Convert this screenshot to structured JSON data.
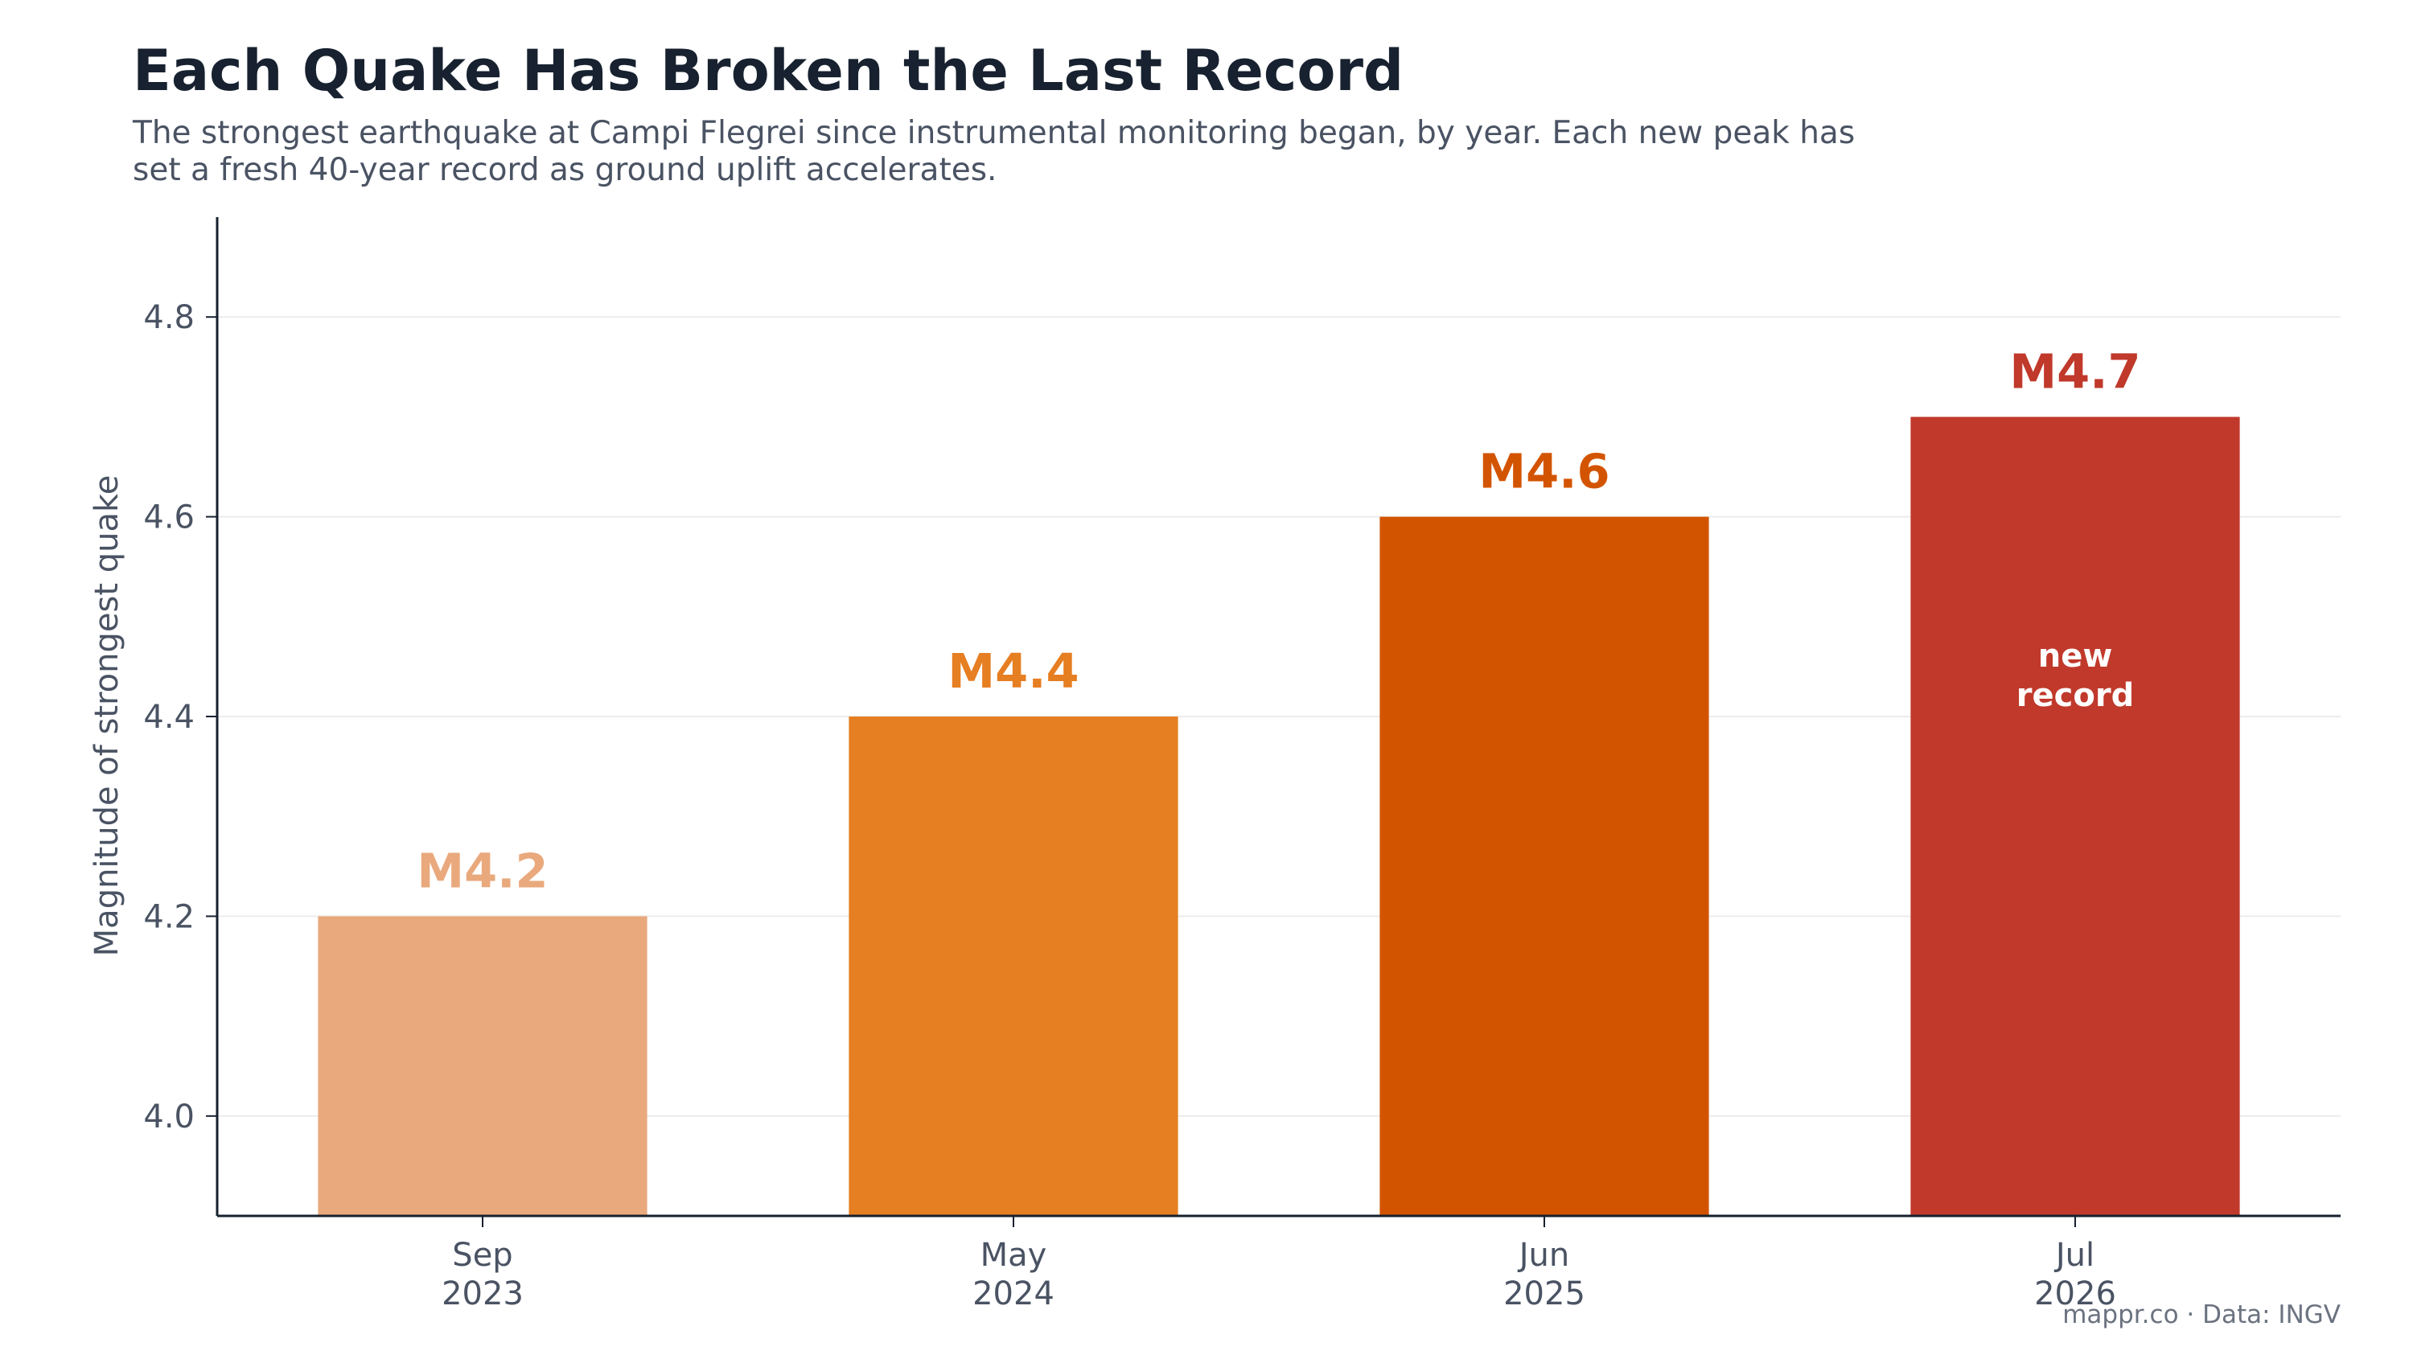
{
  "chart_data": {
    "type": "bar",
    "title": "Each Quake Has Broken the Last Record",
    "subtitle_lines": [
      "The strongest earthquake at Campi Flegrei since instrumental monitoring began, by year. Each new peak has",
      "set a fresh 40-year record as ground uplift accelerates."
    ],
    "xlabel": "",
    "ylabel": "Magnitude of strongest quake",
    "categories": [
      [
        "Sep",
        "2023"
      ],
      [
        "May",
        "2024"
      ],
      [
        "Jun",
        "2025"
      ],
      [
        "Jul",
        "2026"
      ]
    ],
    "values": [
      4.2,
      4.4,
      4.6,
      4.7
    ],
    "value_labels": [
      "M4.2",
      "M4.4",
      "M4.6",
      "M4.7"
    ],
    "colors": [
      "#e9a97d",
      "#e67e22",
      "#d35400",
      "#c0392b"
    ],
    "yticks": [
      4.0,
      4.2,
      4.4,
      4.6,
      4.8
    ],
    "ytick_labels": [
      "4.0",
      "4.2",
      "4.4",
      "4.6",
      "4.8"
    ],
    "ylim": [
      3.9,
      4.9
    ],
    "grid": "y",
    "annotation": {
      "category_index": 3,
      "lines": [
        "new",
        "record"
      ]
    },
    "source": "mappr.co · Data: INGV"
  }
}
